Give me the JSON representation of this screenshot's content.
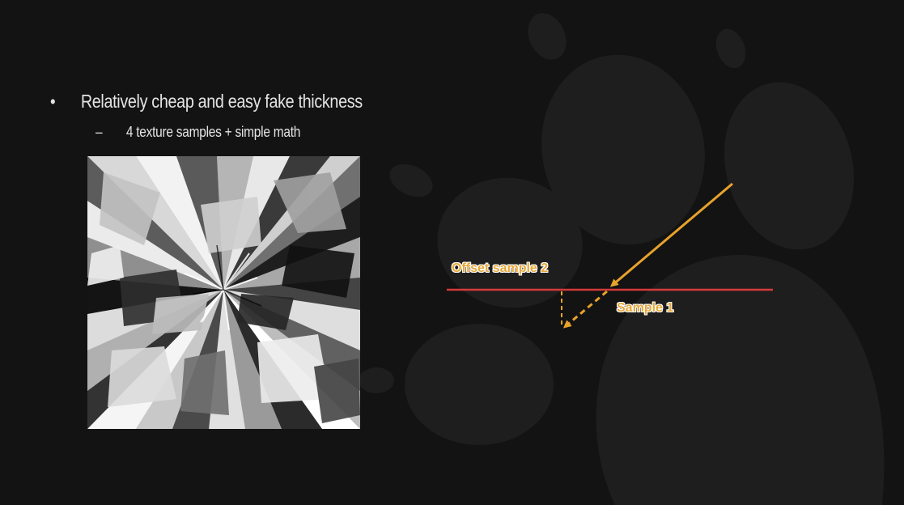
{
  "slide": {
    "bullets": [
      {
        "text": "Relatively cheap and easy fake thickness",
        "marker": "•",
        "sub_bullets": [
          {
            "text": "4 texture samples + simple math",
            "marker": "–"
          }
        ]
      }
    ]
  },
  "diagram": {
    "labels": {
      "offset_sample": "Offset sample 2",
      "sample_1": "Sample 1"
    },
    "colors": {
      "surface_line": "#d63a3a",
      "ray": "#e8a32a",
      "label_text": "#e8a93a",
      "label_outline": "#ffffff"
    }
  },
  "texture": {
    "description_icon": "grayscale-radial-shard-texture",
    "colors": [
      "#ffffff",
      "#d9d9d9",
      "#b3b3b3",
      "#8c8c8c",
      "#5e5e5e",
      "#333333",
      "#111111"
    ]
  },
  "background": {
    "icon": "paw-print-icon",
    "base_color": "#131313",
    "paw_color": "#1f1f1f"
  }
}
